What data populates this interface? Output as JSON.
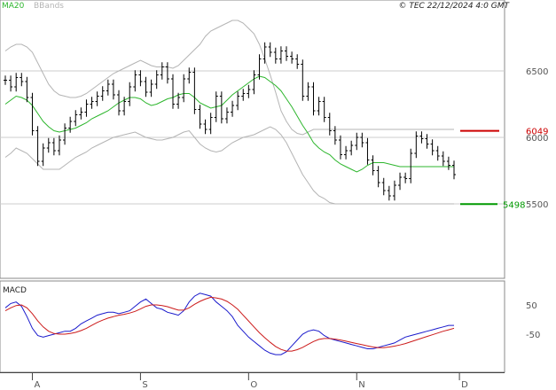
{
  "header": {
    "ma_label": "MA20",
    "bb_label": "BBands",
    "copyright": "© TEC 22/12/2024 4:0 GMT"
  },
  "colors": {
    "price": "#000000",
    "ma": "#2db62d",
    "bands": "#b4b4b4",
    "grid": "#cccccc",
    "resistance": "#cc0000",
    "support": "#009900",
    "macd": "#1a1acc",
    "signal": "#cc1a1a"
  },
  "chart_data": [
    {
      "type": "ohlc",
      "title": "",
      "y_ticks": [
        "6500",
        "6000",
        "5500"
      ],
      "y_tick_values": [
        6500,
        6000,
        5500
      ],
      "x_ticks": [
        "A",
        "S",
        "O",
        "N",
        "D"
      ],
      "x_tick_indices": [
        5,
        25,
        45,
        65,
        84
      ],
      "ylim": [
        5000,
        6950
      ],
      "grid": true,
      "resistance": {
        "value": 6049,
        "label": "6049"
      },
      "support": {
        "value": 5498,
        "label": "5498"
      },
      "series": [
        {
          "name": "MA20",
          "indicator": "ma20"
        },
        {
          "name": "BBands",
          "indicator": "bbands"
        }
      ],
      "close": [
        6430,
        6380,
        6450,
        6420,
        6300,
        6050,
        5820,
        5920,
        5960,
        5900,
        5980,
        6070,
        6120,
        6170,
        6190,
        6250,
        6270,
        6310,
        6350,
        6400,
        6320,
        6200,
        6270,
        6380,
        6470,
        6420,
        6340,
        6400,
        6470,
        6530,
        6440,
        6250,
        6300,
        6440,
        6490,
        6210,
        6100,
        6060,
        6150,
        6310,
        6140,
        6190,
        6240,
        6310,
        6330,
        6360,
        6470,
        6590,
        6680,
        6640,
        6590,
        6650,
        6610,
        6590,
        6550,
        6310,
        6380,
        6200,
        6270,
        6150,
        6050,
        5980,
        5870,
        5900,
        5940,
        6000,
        5960,
        5830,
        5750,
        5660,
        5600,
        5560,
        5640,
        5700,
        5690,
        5880,
        6010,
        5990,
        5950,
        5900,
        5860,
        5820,
        5790,
        5720
      ],
      "ma20": [
        6250,
        6280,
        6310,
        6300,
        6280,
        6240,
        6180,
        6120,
        6080,
        6050,
        6040,
        6050,
        6060,
        6070,
        6090,
        6110,
        6140,
        6160,
        6180,
        6200,
        6230,
        6260,
        6280,
        6300,
        6300,
        6290,
        6260,
        6240,
        6250,
        6270,
        6290,
        6300,
        6320,
        6330,
        6330,
        6300,
        6260,
        6240,
        6220,
        6230,
        6240,
        6280,
        6320,
        6350,
        6380,
        6410,
        6440,
        6460,
        6450,
        6420,
        6390,
        6350,
        6290,
        6230,
        6160,
        6090,
        6030,
        5960,
        5920,
        5890,
        5870,
        5830,
        5800,
        5780,
        5760,
        5740,
        5760,
        5790,
        5810,
        5810,
        5810,
        5800,
        5790,
        5780,
        5780,
        5780,
        5780,
        5780,
        5780,
        5780,
        5780,
        5780,
        5780,
        5780
      ],
      "bb_upper": [
        6650,
        6680,
        6700,
        6700,
        6680,
        6640,
        6560,
        6480,
        6400,
        6350,
        6320,
        6310,
        6300,
        6300,
        6310,
        6330,
        6360,
        6390,
        6420,
        6450,
        6480,
        6500,
        6520,
        6540,
        6560,
        6580,
        6560,
        6540,
        6530,
        6530,
        6530,
        6520,
        6540,
        6580,
        6620,
        6660,
        6700,
        6760,
        6800,
        6820,
        6840,
        6860,
        6880,
        6880,
        6860,
        6820,
        6780,
        6700,
        6590,
        6470,
        6340,
        6200,
        6120,
        6060,
        6030,
        6020,
        6040,
        6060,
        6060,
        6060,
        6060,
        6060,
        6060,
        6060,
        6060,
        6060,
        6060,
        6060,
        6060,
        6060,
        6060,
        6060,
        6060,
        6060,
        6060,
        6060,
        6060,
        6060,
        6060,
        6060,
        6060,
        6060,
        6060,
        6060
      ],
      "bb_lower": [
        5850,
        5880,
        5920,
        5900,
        5880,
        5840,
        5800,
        5760,
        5760,
        5760,
        5760,
        5790,
        5820,
        5850,
        5870,
        5890,
        5920,
        5940,
        5960,
        5980,
        6000,
        6010,
        6020,
        6030,
        6040,
        6020,
        6000,
        5990,
        5980,
        5980,
        5990,
        6000,
        6020,
        6040,
        6050,
        6000,
        5950,
        5920,
        5900,
        5890,
        5900,
        5930,
        5960,
        5980,
        6000,
        6010,
        6020,
        6040,
        6060,
        6080,
        6060,
        6020,
        5960,
        5880,
        5800,
        5720,
        5660,
        5600,
        5560,
        5540,
        5510,
        5500,
        5500,
        5500,
        5500,
        5500,
        5500,
        5500,
        5500,
        5500,
        5500,
        5500,
        5500,
        5500,
        5500,
        5500,
        5500,
        5500,
        5500,
        5500,
        5500,
        5500,
        5500,
        5500
      ]
    },
    {
      "type": "line",
      "title": "MACD",
      "y_ticks": [
        "50",
        "-50"
      ],
      "y_tick_values": [
        50,
        -50
      ],
      "ylim": [
        -140,
        100
      ],
      "grid": false,
      "series": [
        {
          "name": "MACD",
          "values": [
            40,
            55,
            60,
            45,
            10,
            -30,
            -55,
            -60,
            -55,
            -50,
            -45,
            -40,
            -40,
            -30,
            -15,
            -5,
            5,
            15,
            20,
            25,
            25,
            20,
            25,
            30,
            45,
            60,
            70,
            55,
            40,
            35,
            25,
            20,
            15,
            30,
            60,
            80,
            90,
            85,
            80,
            60,
            45,
            30,
            10,
            -20,
            -40,
            -60,
            -75,
            -90,
            -105,
            -115,
            -120,
            -120,
            -110,
            -90,
            -70,
            -50,
            -40,
            -35,
            -40,
            -55,
            -65,
            -70,
            -75,
            -80,
            -85,
            -90,
            -95,
            -100,
            -100,
            -95,
            -90,
            -85,
            -80,
            -70,
            -60,
            -55,
            -50,
            -45,
            -40,
            -35,
            -30,
            -25,
            -20,
            -20
          ]
        },
        {
          "name": "Signal",
          "values": [
            30,
            40,
            48,
            50,
            40,
            20,
            -5,
            -25,
            -40,
            -48,
            -50,
            -50,
            -48,
            -44,
            -38,
            -30,
            -20,
            -10,
            -2,
            5,
            10,
            15,
            18,
            22,
            28,
            36,
            45,
            50,
            50,
            48,
            44,
            38,
            32,
            32,
            40,
            52,
            62,
            70,
            76,
            74,
            70,
            62,
            50,
            35,
            15,
            -5,
            -25,
            -45,
            -62,
            -78,
            -92,
            -102,
            -108,
            -108,
            -103,
            -95,
            -85,
            -75,
            -68,
            -65,
            -65,
            -67,
            -70,
            -74,
            -78,
            -82,
            -86,
            -90,
            -94,
            -96,
            -96,
            -94,
            -91,
            -87,
            -82,
            -76,
            -70,
            -64,
            -58,
            -52,
            -46,
            -40,
            -35,
            -30
          ]
        }
      ]
    }
  ]
}
